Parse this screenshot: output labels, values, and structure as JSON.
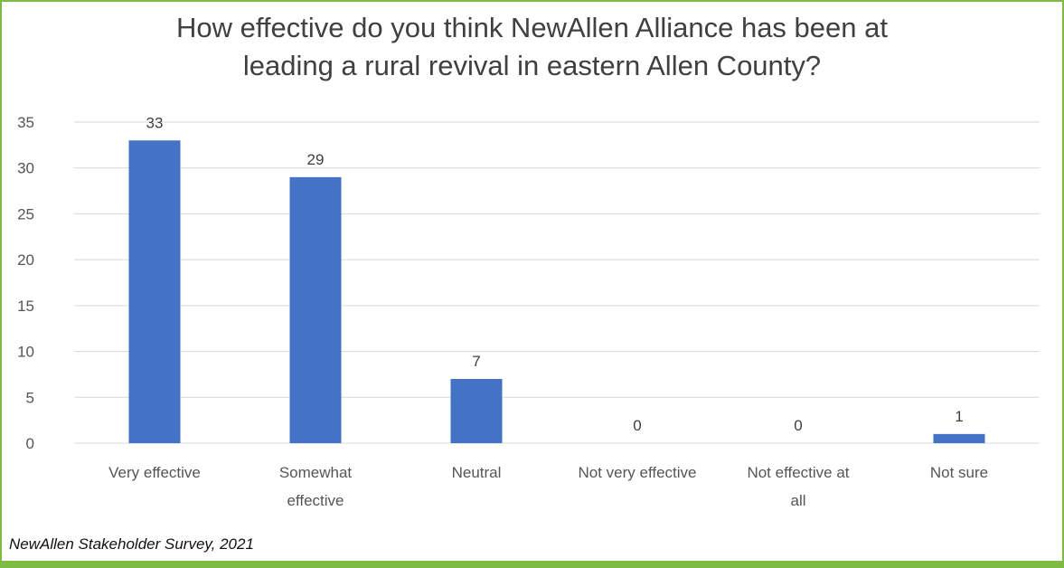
{
  "chart_data": {
    "type": "bar",
    "title_lines": [
      "How effective do you think NewAllen Alliance has been at",
      "leading a rural revival in eastern Allen County?"
    ],
    "categories": [
      [
        "Very effective"
      ],
      [
        "Somewhat",
        "effective"
      ],
      [
        "Neutral"
      ],
      [
        "Not very effective"
      ],
      [
        "Not effective at",
        "all"
      ],
      [
        "Not sure"
      ]
    ],
    "values": [
      33,
      29,
      7,
      0,
      0,
      1
    ],
    "ylim": [
      0,
      35
    ],
    "yticks": [
      0,
      5,
      10,
      15,
      20,
      25,
      30,
      35
    ],
    "grid": true,
    "bar_color": "#4472c4",
    "grid_color": "#d9d9d9"
  },
  "source": "NewAllen Stakeholder Survey, 2021",
  "colors": {
    "frame": "#7dbb42"
  }
}
